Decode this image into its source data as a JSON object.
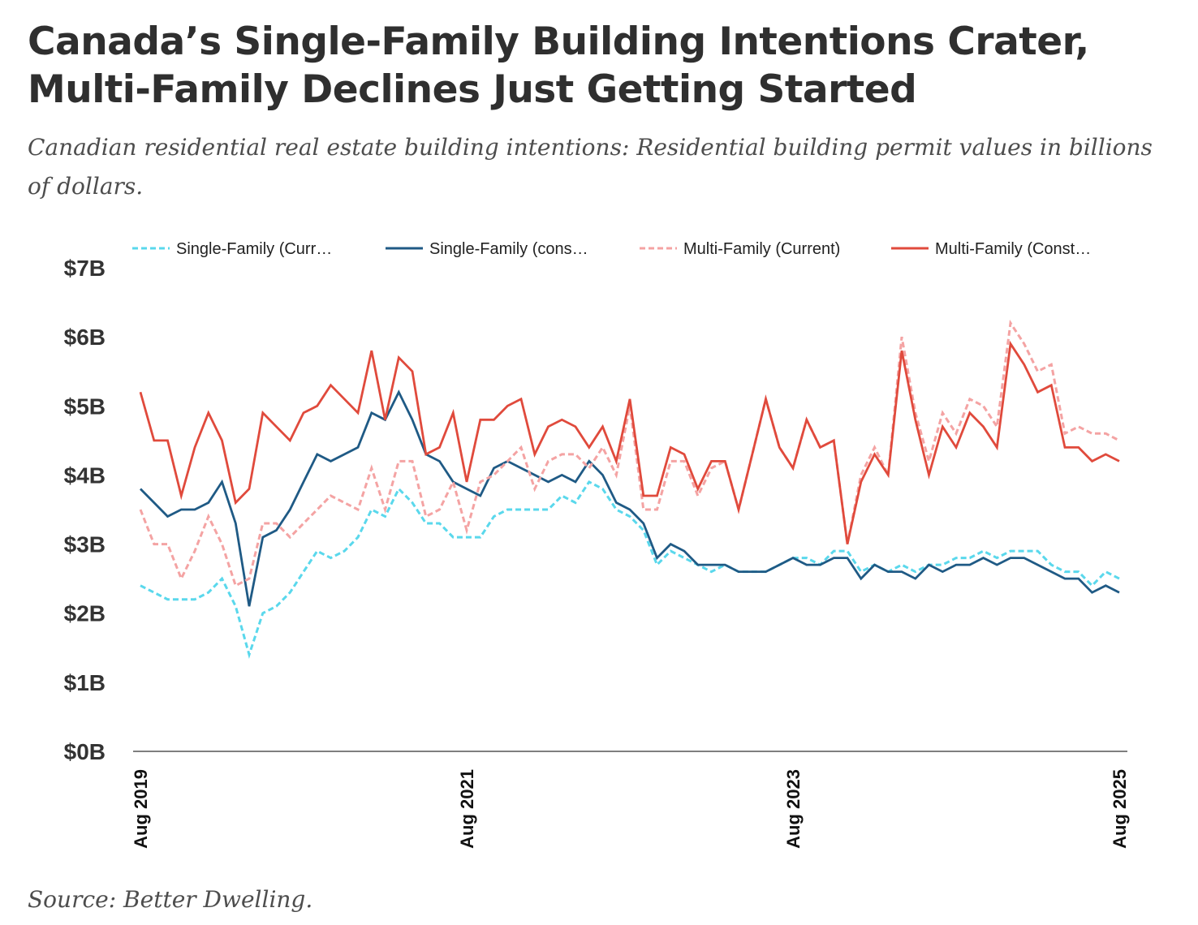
{
  "title": "Canada’s Single-Family Building Intentions Crater, Multi-Family Declines Just Getting Started",
  "subtitle": "Canadian residential real estate building intentions: Residential building permit values in billions of dollars.",
  "source": "Source: Better Dwelling.",
  "chart_data": {
    "type": "line",
    "title": "Canada’s Single-Family Building Intentions Crater, Multi-Family Declines Just Getting Started",
    "xlabel": "",
    "ylabel": "",
    "x_start": "Aug 2019",
    "x_end": "Aug 2025",
    "frequency": "monthly",
    "x_ticks": [
      "Aug 2019",
      "Aug 2021",
      "Aug 2023",
      "Aug 2025"
    ],
    "x_tick_index": [
      0,
      24,
      48,
      72
    ],
    "y_ticks": [
      "$0B",
      "$1B",
      "$2B",
      "$3B",
      "$4B",
      "$5B",
      "$6B",
      "$7B"
    ],
    "ylim": [
      0,
      7
    ],
    "grid": false,
    "legend_position": "top",
    "series": [
      {
        "name": "Single-Family (Current)",
        "legend_label": "Single-Family (Curr…",
        "color": "#5ad8ec",
        "style": "dashed",
        "values": [
          2.4,
          2.3,
          2.2,
          2.2,
          2.2,
          2.3,
          2.5,
          2.1,
          1.4,
          2.0,
          2.1,
          2.3,
          2.6,
          2.9,
          2.8,
          2.9,
          3.1,
          3.5,
          3.4,
          3.8,
          3.6,
          3.3,
          3.3,
          3.1,
          3.1,
          3.1,
          3.4,
          3.5,
          3.5,
          3.5,
          3.5,
          3.7,
          3.6,
          3.9,
          3.8,
          3.5,
          3.4,
          3.2,
          2.7,
          2.9,
          2.8,
          2.7,
          2.6,
          2.7,
          2.6,
          2.6,
          2.6,
          2.7,
          2.8,
          2.8,
          2.7,
          2.9,
          2.9,
          2.6,
          2.7,
          2.6,
          2.7,
          2.6,
          2.7,
          2.7,
          2.8,
          2.8,
          2.9,
          2.8,
          2.9,
          2.9,
          2.9,
          2.7,
          2.6,
          2.6,
          2.4,
          2.6,
          2.5
        ]
      },
      {
        "name": "Single-Family (constant)",
        "legend_label": "Single-Family (cons…",
        "color": "#1f5a85",
        "style": "solid",
        "values": [
          3.8,
          3.6,
          3.4,
          3.5,
          3.5,
          3.6,
          3.9,
          3.3,
          2.1,
          3.1,
          3.2,
          3.5,
          3.9,
          4.3,
          4.2,
          4.3,
          4.4,
          4.9,
          4.8,
          5.2,
          4.8,
          4.3,
          4.2,
          3.9,
          3.8,
          3.7,
          4.1,
          4.2,
          4.1,
          4.0,
          3.9,
          4.0,
          3.9,
          4.2,
          4.0,
          3.6,
          3.5,
          3.3,
          2.8,
          3.0,
          2.9,
          2.7,
          2.7,
          2.7,
          2.6,
          2.6,
          2.6,
          2.7,
          2.8,
          2.7,
          2.7,
          2.8,
          2.8,
          2.5,
          2.7,
          2.6,
          2.6,
          2.5,
          2.7,
          2.6,
          2.7,
          2.7,
          2.8,
          2.7,
          2.8,
          2.8,
          2.7,
          2.6,
          2.5,
          2.5,
          2.3,
          2.4,
          2.3
        ]
      },
      {
        "name": "Multi-Family (Current)",
        "legend_label": "Multi-Family (Current)",
        "color": "#f4a3a3",
        "style": "dashed",
        "values": [
          3.5,
          3.0,
          3.0,
          2.5,
          2.9,
          3.4,
          3.0,
          2.4,
          2.5,
          3.3,
          3.3,
          3.1,
          3.3,
          3.5,
          3.7,
          3.6,
          3.5,
          4.1,
          3.5,
          4.2,
          4.2,
          3.4,
          3.5,
          3.9,
          3.2,
          3.9,
          4.0,
          4.2,
          4.4,
          3.8,
          4.2,
          4.3,
          4.3,
          4.1,
          4.4,
          4.0,
          5.0,
          3.5,
          3.5,
          4.2,
          4.2,
          3.7,
          4.1,
          4.2,
          3.5,
          4.3,
          5.1,
          4.4,
          4.1,
          4.8,
          4.4,
          4.5,
          3.0,
          4.0,
          4.4,
          4.0,
          6.0,
          4.9,
          4.2,
          4.9,
          4.6,
          5.1,
          5.0,
          4.7,
          6.2,
          5.9,
          5.5,
          5.6,
          4.6,
          4.7,
          4.6,
          4.6,
          4.5
        ]
      },
      {
        "name": "Multi-Family (Constant)",
        "legend_label": "Multi-Family (Const…",
        "color": "#e04a3c",
        "style": "solid",
        "values": [
          5.2,
          4.5,
          4.5,
          3.7,
          4.4,
          4.9,
          4.5,
          3.6,
          3.8,
          4.9,
          4.7,
          4.5,
          4.9,
          5.0,
          5.3,
          5.1,
          4.9,
          5.8,
          4.8,
          5.7,
          5.5,
          4.3,
          4.4,
          4.9,
          3.9,
          4.8,
          4.8,
          5.0,
          5.1,
          4.3,
          4.7,
          4.8,
          4.7,
          4.4,
          4.7,
          4.2,
          5.1,
          3.7,
          3.7,
          4.4,
          4.3,
          3.8,
          4.2,
          4.2,
          3.5,
          4.3,
          5.1,
          4.4,
          4.1,
          4.8,
          4.4,
          4.5,
          3.0,
          3.9,
          4.3,
          4.0,
          5.8,
          4.8,
          4.0,
          4.7,
          4.4,
          4.9,
          4.7,
          4.4,
          5.9,
          5.6,
          5.2,
          5.3,
          4.4,
          4.4,
          4.2,
          4.3,
          4.2
        ]
      }
    ]
  }
}
